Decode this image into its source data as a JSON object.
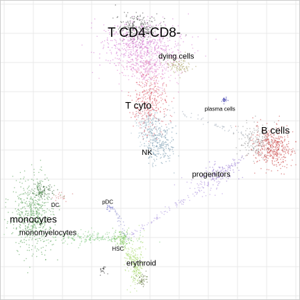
{
  "chart_data": {
    "type": "scatter",
    "title": "",
    "xlabel": "",
    "ylabel": "",
    "xlim": [
      0,
      100
    ],
    "ylim": [
      0,
      100
    ],
    "grid": true,
    "axes_ticks_shown": false,
    "background_color": "#ffffff",
    "grid_color": "#e8e8e8",
    "point_opacity": 0.55,
    "label_color": "#000000",
    "clusters": [
      {
        "name": "T CD4-CD8-",
        "label_size": "xlarge",
        "color": "#cc66cc",
        "label_pos": [
          48,
          90
        ],
        "blobs": [
          {
            "cx": 46,
            "cy": 92,
            "sx": 4,
            "sy": 2.5,
            "n": 220,
            "color": "#444444"
          },
          {
            "cx": 47,
            "cy": 86,
            "sx": 7,
            "sy": 4,
            "n": 520,
            "color": "#d070d0"
          },
          {
            "cx": 49,
            "cy": 79,
            "sx": 5,
            "sy": 4,
            "n": 360,
            "color": "#e07fc8"
          }
        ]
      },
      {
        "name": "dying cells",
        "label_size": "medium",
        "color": "#a8a060",
        "label_pos": [
          59,
          82
        ],
        "blobs": [
          {
            "cx": 60,
            "cy": 79,
            "sx": 2.5,
            "sy": 1.5,
            "n": 90,
            "color": "#a8a060"
          }
        ]
      },
      {
        "name": "T cyto",
        "label_size": "large",
        "color": "#d84a5a",
        "label_pos": [
          46,
          65
        ],
        "blobs": [
          {
            "cx": 50,
            "cy": 66,
            "sx": 3,
            "sy": 5,
            "n": 320,
            "color": "#d84a5a"
          }
        ]
      },
      {
        "name": "NK",
        "label_size": "medium",
        "color": "#6a90a8",
        "label_pos": [
          49,
          49
        ],
        "blobs": [
          {
            "cx": 53,
            "cy": 53,
            "sx": 2.5,
            "sy": 4,
            "n": 260,
            "color": "#6a90a8"
          },
          {
            "cx": 49,
            "cy": 58,
            "sx": 2,
            "sy": 3,
            "n": 120,
            "color": "#9ab8c8"
          }
        ]
      },
      {
        "name": "plasma cells",
        "label_size": "small",
        "color": "#3333aa",
        "label_pos": [
          74,
          64
        ],
        "blobs": [
          {
            "cx": 75.5,
            "cy": 67,
            "sx": 0.5,
            "sy": 0.5,
            "n": 25,
            "color": "#3333aa"
          }
        ]
      },
      {
        "name": "B cells",
        "label_size": "large",
        "color": "#c84040",
        "label_pos": [
          93,
          56.5
        ],
        "blobs": [
          {
            "cx": 92,
            "cy": 51,
            "sx": 3.5,
            "sy": 3.5,
            "n": 420,
            "color": "#c84040"
          },
          {
            "cx": 86,
            "cy": 53,
            "sx": 3,
            "sy": 3,
            "n": 160,
            "color": "#909090"
          }
        ]
      },
      {
        "name": "progenitors",
        "label_size": "medium",
        "color": "#8866cc",
        "label_pos": [
          71,
          41.5
        ],
        "blobs": [
          {
            "cx": 74,
            "cy": 42,
            "sx": 3,
            "sy": 1.5,
            "n": 80,
            "color": "#8866cc"
          },
          {
            "cx": 69,
            "cy": 38,
            "sx": 3,
            "sy": 2,
            "n": 50,
            "color": "#aa88dd"
          }
        ]
      },
      {
        "name": "DC",
        "label_size": "small",
        "color": "#d07070",
        "label_pos": [
          17.5,
          31
        ],
        "blobs": [
          {
            "cx": 20,
            "cy": 34,
            "sx": 1.5,
            "sy": 1,
            "n": 20,
            "color": "#d07070"
          }
        ]
      },
      {
        "name": "pDC",
        "label_size": "small",
        "color": "#6666cc",
        "label_pos": [
          35.5,
          32
        ],
        "blobs": [
          {
            "cx": 36,
            "cy": 30,
            "sx": 0.7,
            "sy": 0.7,
            "n": 18,
            "color": "#6666cc"
          }
        ]
      },
      {
        "name": "monocytes",
        "label_size": "large",
        "color": "#4d9a4d",
        "label_pos": [
          10,
          26
        ],
        "blobs": [
          {
            "cx": 10,
            "cy": 28,
            "sx": 3.5,
            "sy": 6.5,
            "n": 520,
            "color": "#4d9a4d"
          },
          {
            "cx": 13,
            "cy": 36,
            "sx": 2,
            "sy": 1.5,
            "n": 90,
            "color": "#3a6a3a"
          }
        ]
      },
      {
        "name": "monomyelocytes",
        "label_size": "medium",
        "color": "#7ac87a",
        "label_pos": [
          15,
          21.5
        ],
        "blobs": [
          {
            "cx": 27,
            "cy": 20,
            "sx": 9,
            "sy": 1,
            "n": 200,
            "color": "#7ac87a"
          }
        ]
      },
      {
        "name": "HSC",
        "label_size": "small",
        "color": "#6fbf4f",
        "label_pos": [
          39,
          16
        ],
        "blobs": [
          {
            "cx": 40,
            "cy": 19.5,
            "sx": 1.5,
            "sy": 1.5,
            "n": 90,
            "color": "#6fbf4f"
          }
        ]
      },
      {
        "name": "erythroid",
        "label_size": "medium",
        "color": "#a6d96a",
        "label_pos": [
          47,
          11
        ],
        "blobs": [
          {
            "cx": 45,
            "cy": 11,
            "sx": 1.5,
            "sy": 4,
            "n": 180,
            "color": "#a6d96a"
          },
          {
            "cx": 47.5,
            "cy": 5.5,
            "sx": 1,
            "sy": 1,
            "n": 40,
            "color": "#556633"
          },
          {
            "cx": 34,
            "cy": 9,
            "sx": 0.6,
            "sy": 0.8,
            "n": 20,
            "color": "#333333"
          }
        ]
      }
    ],
    "trails": [
      {
        "from": [
          55,
          64
        ],
        "to": [
          84,
          55
        ],
        "n": 45,
        "color": "#9aa6b4"
      },
      {
        "from": [
          82,
          48
        ],
        "to": [
          68,
          37
        ],
        "n": 40,
        "color": "#8866cc"
      },
      {
        "from": [
          68,
          37
        ],
        "to": [
          42,
          20
        ],
        "n": 80,
        "color": "#a890dd"
      },
      {
        "from": [
          42,
          20
        ],
        "to": [
          38,
          30
        ],
        "n": 30,
        "color": "#8888cc"
      },
      {
        "from": [
          40,
          20
        ],
        "to": [
          46,
          7
        ],
        "n": 60,
        "color": "#a6d96a"
      }
    ]
  }
}
